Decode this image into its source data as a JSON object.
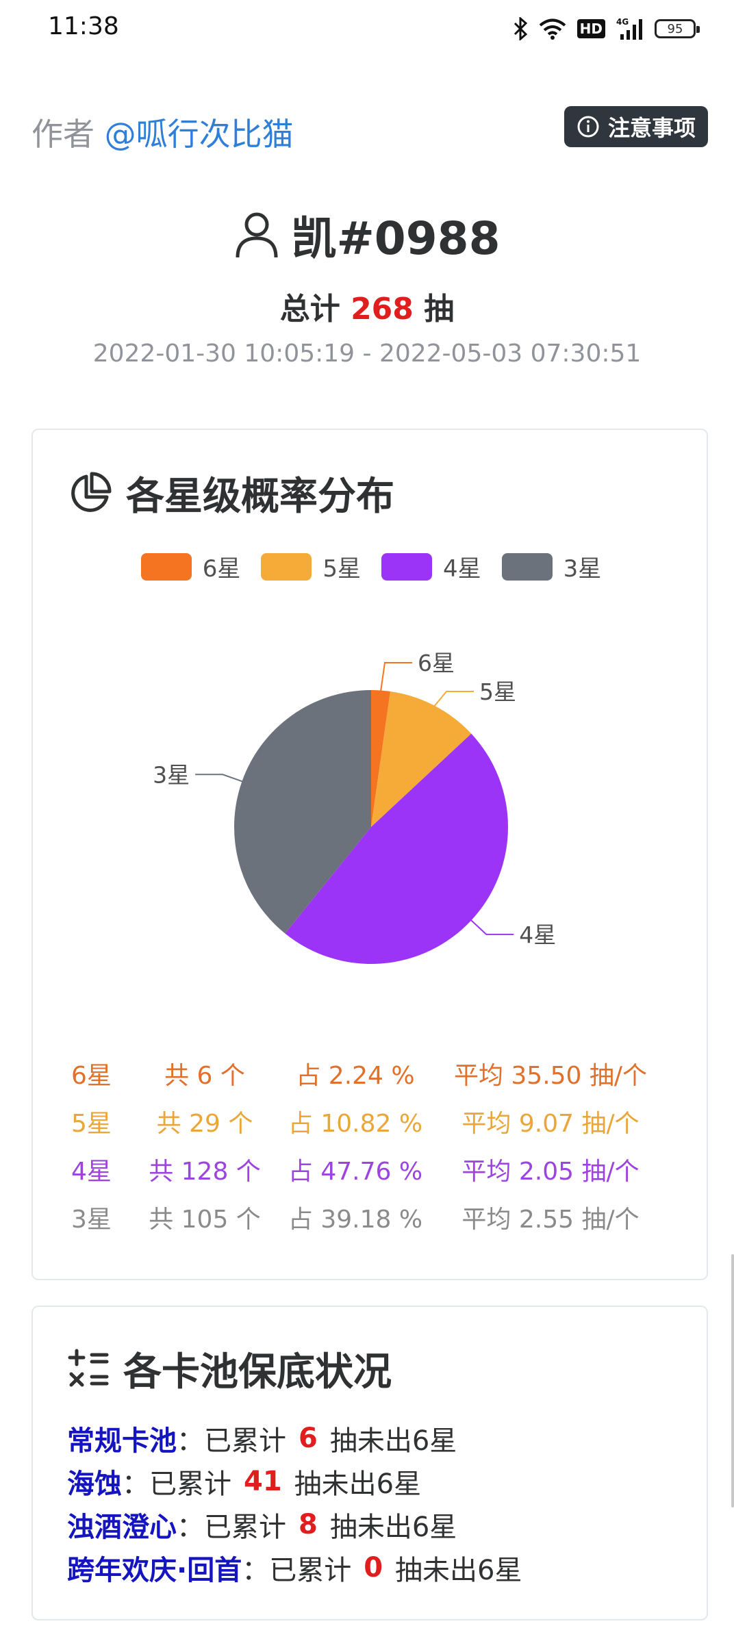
{
  "status_bar": {
    "time": "11:38",
    "battery": "95",
    "hd_label": "HD",
    "net_label": "4G"
  },
  "header": {
    "author_prefix": "作者",
    "author_name": "@呱行次比猫",
    "notice_label": "注意事项"
  },
  "user": {
    "name": "凯#0988",
    "total_prefix": "总计",
    "total_count": "268",
    "total_suffix": "抽",
    "date_range": "2022-01-30 10:05:19 - 2022-05-03 07:30:51"
  },
  "distribution": {
    "title": "各星级概率分布",
    "legend": [
      {
        "label": "6星",
        "color": "#f47421"
      },
      {
        "label": "5星",
        "color": "#f6ab39"
      },
      {
        "label": "4星",
        "color": "#9b34f7"
      },
      {
        "label": "3星",
        "color": "#6b727c"
      }
    ],
    "stats": [
      {
        "star": "6星",
        "count": "共 6 个",
        "pct": "占 2.24 %",
        "avg": "平均 35.50 抽/个",
        "color": "#e0702a"
      },
      {
        "star": "5星",
        "count": "共 29 个",
        "pct": "占 10.82 %",
        "avg": "平均 9.07 抽/个",
        "color": "#eba63a"
      },
      {
        "star": "4星",
        "count": "共 128 个",
        "pct": "占 47.76 %",
        "avg": "平均 2.05 抽/个",
        "color": "#9c43e0"
      },
      {
        "star": "3星",
        "count": "共 105 个",
        "pct": "占 39.18 %",
        "avg": "平均 2.55 抽/个",
        "color": "#8a8a8a"
      }
    ]
  },
  "chart_data": {
    "type": "pie",
    "categories": [
      "6星",
      "5星",
      "4星",
      "3星"
    ],
    "values": [
      6,
      29,
      128,
      105
    ],
    "colors": [
      "#f47421",
      "#f6ab39",
      "#9b34f7",
      "#6b727c"
    ],
    "title": "各星级概率分布",
    "legend": "top"
  },
  "pity": {
    "title": "各卡池保底状况",
    "accum_label": "已累计",
    "tail_label": "抽未出6星",
    "rows": [
      {
        "pool": "常规卡池",
        "count": "6"
      },
      {
        "pool": "海蚀",
        "count": "41"
      },
      {
        "pool": "浊酒澄心",
        "count": "8"
      },
      {
        "pool": "跨年欢庆·回首",
        "count": "0"
      }
    ]
  }
}
